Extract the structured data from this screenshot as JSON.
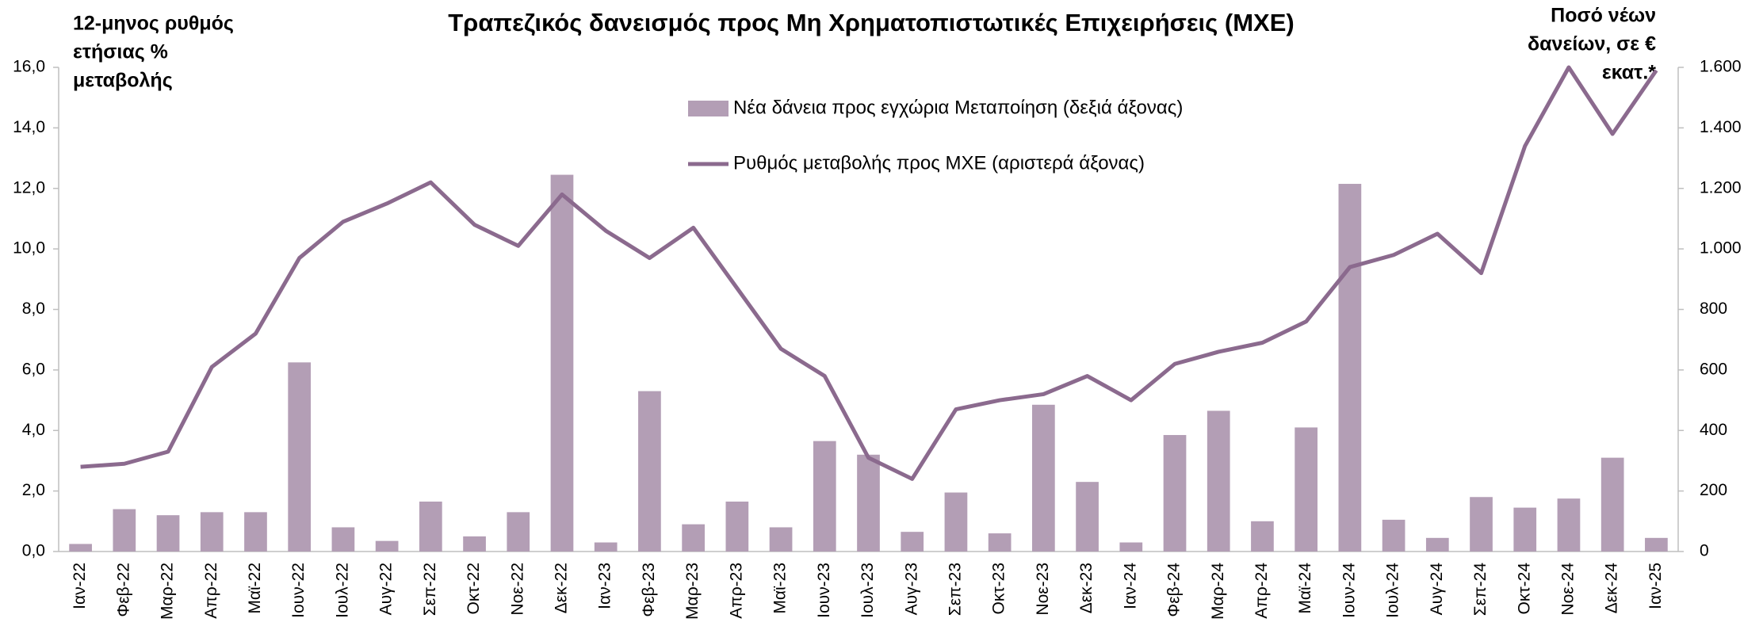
{
  "chart_data": {
    "type": "bar-line",
    "title": "Τραπεζικός δανεισμός προς Μη Χρηματοπιστωτικές Επιχειρήσεις (ΜΧΕ)",
    "y_label": [
      "12-μηνος ρυθμός",
      "ετήσιας %",
      "μεταβολής"
    ],
    "y2_label": [
      "Ποσό νέων",
      "δανείων, σε €",
      "εκατ.*"
    ],
    "categories": [
      "Ιαν-22",
      "Φεβ-22",
      "Μαρ-22",
      "Απρ-22",
      "Μαϊ-22",
      "Ιουν-22",
      "Ιουλ-22",
      "Αυγ-22",
      "Σεπ-22",
      "Οκτ-22",
      "Νοε-22",
      "Δεκ-22",
      "Ιαν-23",
      "Φεβ-23",
      "Μαρ-23",
      "Απρ-23",
      "Μαϊ-23",
      "Ιουν-23",
      "Ιουλ-23",
      "Αυγ-23",
      "Σεπ-23",
      "Οκτ-23",
      "Νοε-23",
      "Δεκ-23",
      "Ιαν-24",
      "Φεβ-24",
      "Μαρ-24",
      "Απρ-24",
      "Μαϊ-24",
      "Ιουν-24",
      "Ιουλ-24",
      "Αυγ-24",
      "Σεπ-24",
      "Οκτ-24",
      "Νοε-24",
      "Δεκ-24",
      "Ιαν-25"
    ],
    "series": [
      {
        "name": "Νέα δάνεια προς εγχώρια Μεταποίηση (δεξιά άξονας)",
        "type": "bar",
        "axis": "y2",
        "color": "#b39eb5",
        "values": [
          25,
          140,
          120,
          130,
          130,
          625,
          80,
          35,
          165,
          50,
          130,
          1245,
          30,
          530,
          90,
          165,
          80,
          365,
          320,
          65,
          195,
          60,
          485,
          230,
          30,
          385,
          465,
          100,
          410,
          1215,
          105,
          45,
          180,
          145,
          175,
          310,
          45
        ]
      },
      {
        "name": "Ρυθμός μεταβολής προς ΜΧΕ (αριστερά άξονας)",
        "type": "line",
        "axis": "y",
        "color": "#8b6a8e",
        "values": [
          2.8,
          2.9,
          3.3,
          6.1,
          7.2,
          9.7,
          10.9,
          11.5,
          12.2,
          10.8,
          10.1,
          11.8,
          10.6,
          9.7,
          10.7,
          8.7,
          6.7,
          5.8,
          3.1,
          2.4,
          4.7,
          5.0,
          5.2,
          5.8,
          5.0,
          6.2,
          6.6,
          6.9,
          7.6,
          9.4,
          9.8,
          10.5,
          9.2,
          13.4,
          16.0,
          13.8,
          15.9
        ]
      }
    ],
    "ylim": [
      0,
      16
    ],
    "yticks": [
      {
        "value": 0,
        "label": "0,0"
      },
      {
        "value": 2,
        "label": "2,0"
      },
      {
        "value": 4,
        "label": "4,0"
      },
      {
        "value": 6,
        "label": "6,0"
      },
      {
        "value": 8,
        "label": "8,0"
      },
      {
        "value": 10,
        "label": "10,0"
      },
      {
        "value": 12,
        "label": "12,0"
      },
      {
        "value": 14,
        "label": "14,0"
      },
      {
        "value": 16,
        "label": "16,0"
      }
    ],
    "y2lim": [
      0,
      1600
    ],
    "y2ticks": [
      0,
      200,
      400,
      600,
      800,
      {
        "value": 1000,
        "label": "1.000"
      },
      {
        "value": 1200,
        "label": "1.200"
      },
      {
        "value": 1400,
        "label": "1.400"
      },
      {
        "value": 1600,
        "label": "1.600"
      }
    ],
    "grid": false
  }
}
